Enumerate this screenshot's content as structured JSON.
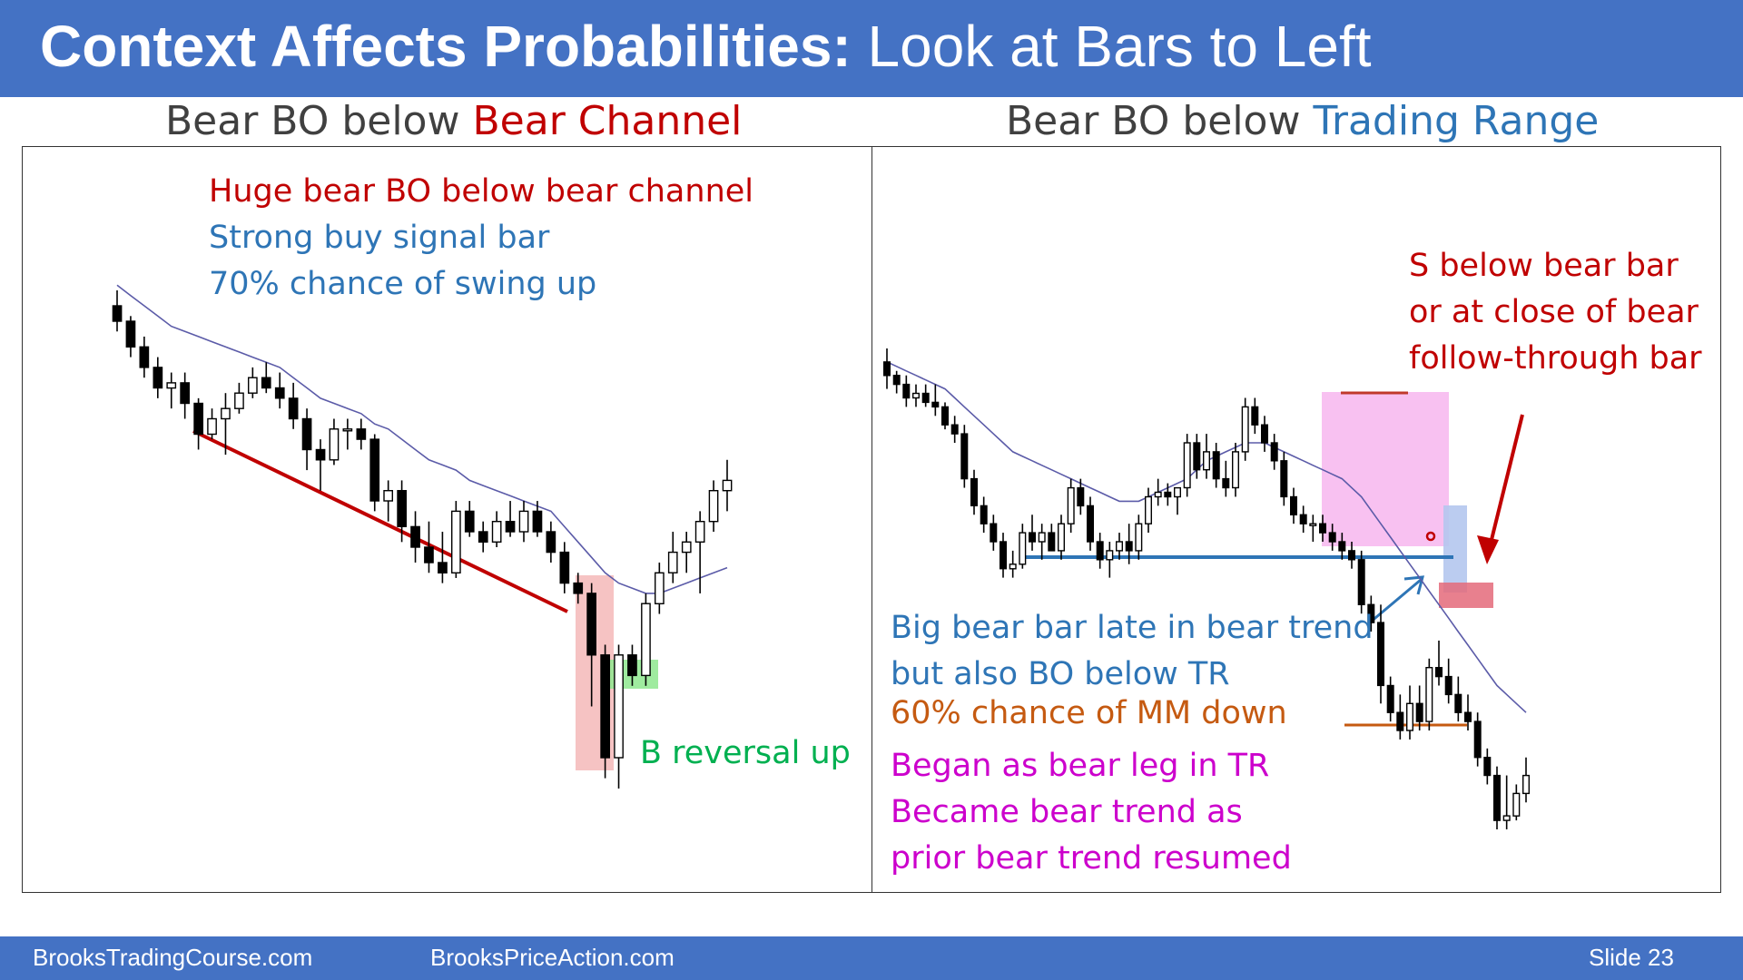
{
  "slide": {
    "title_bold": "Context Affects Probabilities:",
    "title_rest": "Look at Bars to Left"
  },
  "left": {
    "heading_prefix": "Bear BO below",
    "heading_emphasis": "Bear Channel",
    "notes": [
      "Huge bear BO below bear channel",
      "Strong buy signal bar",
      "70% chance of swing up"
    ],
    "reversal_label": "B reversal up"
  },
  "right": {
    "heading_prefix": "Bear BO below",
    "heading_emphasis": "Trading Range",
    "sell_notes": [
      "S below bear bar",
      "or at close of bear",
      "follow-through bar"
    ],
    "bigbar_notes": [
      "Big bear bar late in bear trend",
      "but also BO below TR"
    ],
    "mm_note": "60% chance of MM down",
    "leg_notes": [
      "Began as bear leg in TR",
      "Became bear trend as",
      "prior bear trend resumed"
    ]
  },
  "footer": {
    "site1": "BrooksTradingCourse.com",
    "site2": "BrooksPriceAction.com",
    "slide_label": "Slide  23"
  },
  "colors": {
    "title_bar": "#4472c4",
    "red_text": "#c00000",
    "blue_text": "#2e75b6",
    "green_text": "#00b050",
    "orange_text": "#c55a11",
    "magenta_text": "#cc00cc"
  },
  "chart_data": [
    {
      "type": "candlestick",
      "name": "left-chart",
      "bars_ohlc": [
        [
          100,
          103,
          95,
          97
        ],
        [
          97,
          98,
          90,
          92
        ],
        [
          92,
          94,
          86,
          88
        ],
        [
          88,
          90,
          82,
          84
        ],
        [
          84,
          87,
          80,
          85
        ],
        [
          85,
          87,
          78,
          81
        ],
        [
          81,
          82,
          72,
          75
        ],
        [
          75,
          80,
          74,
          78
        ],
        [
          78,
          83,
          71,
          80
        ],
        [
          80,
          85,
          79,
          83
        ],
        [
          83,
          88,
          82,
          86
        ],
        [
          86,
          89,
          83,
          84
        ],
        [
          84,
          87,
          80,
          82
        ],
        [
          82,
          85,
          76,
          78
        ],
        [
          78,
          80,
          68,
          72
        ],
        [
          72,
          74,
          64,
          70
        ],
        [
          70,
          78,
          69,
          76
        ],
        [
          76,
          78,
          72,
          76
        ],
        [
          76,
          78,
          72,
          74
        ],
        [
          74,
          75,
          60,
          62
        ],
        [
          62,
          66,
          58,
          64
        ],
        [
          64,
          66,
          54,
          57
        ],
        [
          57,
          60,
          50,
          53
        ],
        [
          53,
          58,
          48,
          50
        ],
        [
          50,
          56,
          46,
          48
        ],
        [
          48,
          62,
          47,
          60
        ],
        [
          60,
          62,
          55,
          56
        ],
        [
          56,
          58,
          52,
          54
        ],
        [
          54,
          60,
          53,
          58
        ],
        [
          58,
          62,
          55,
          56
        ],
        [
          56,
          62,
          54,
          60
        ],
        [
          60,
          62,
          55,
          56
        ],
        [
          56,
          58,
          50,
          52
        ],
        [
          52,
          54,
          44,
          46
        ],
        [
          46,
          48,
          42,
          44
        ],
        [
          44,
          46,
          22,
          32
        ],
        [
          32,
          34,
          8,
          12
        ],
        [
          12,
          34,
          6,
          32
        ],
        [
          32,
          34,
          26,
          28
        ],
        [
          28,
          44,
          26,
          42
        ],
        [
          42,
          50,
          40,
          48
        ],
        [
          48,
          56,
          46,
          52
        ],
        [
          52,
          56,
          48,
          54
        ],
        [
          54,
          60,
          44,
          58
        ],
        [
          58,
          66,
          56,
          64
        ],
        [
          64,
          70,
          60,
          66
        ]
      ],
      "ema": [
        104,
        102,
        100,
        98,
        96,
        95,
        94,
        93,
        92,
        91,
        90,
        89,
        88,
        86,
        84,
        82,
        81,
        80,
        79,
        77,
        76,
        74,
        72,
        70,
        69,
        68,
        66,
        65,
        64,
        63,
        62,
        61,
        60,
        57,
        54,
        51,
        48,
        46,
        45,
        44,
        44,
        45,
        46,
        47,
        48,
        49
      ]
    },
    {
      "type": "candlestick",
      "name": "right-chart",
      "bars_ohlc": [
        [
          100,
          103,
          94,
          97
        ],
        [
          97,
          98,
          93,
          95
        ],
        [
          95,
          97,
          90,
          92
        ],
        [
          92,
          95,
          90,
          93
        ],
        [
          93,
          95,
          90,
          91
        ],
        [
          91,
          95,
          88,
          90
        ],
        [
          90,
          91,
          85,
          86
        ],
        [
          86,
          88,
          82,
          84
        ],
        [
          84,
          86,
          72,
          74
        ],
        [
          74,
          76,
          66,
          68
        ],
        [
          68,
          70,
          62,
          64
        ],
        [
          64,
          66,
          58,
          60
        ],
        [
          60,
          62,
          52,
          54
        ],
        [
          54,
          58,
          52,
          55
        ],
        [
          55,
          64,
          54,
          62
        ],
        [
          62,
          66,
          58,
          60
        ],
        [
          60,
          64,
          56,
          62
        ],
        [
          62,
          64,
          58,
          58
        ],
        [
          58,
          66,
          56,
          64
        ],
        [
          64,
          74,
          62,
          72
        ],
        [
          72,
          74,
          66,
          68
        ],
        [
          68,
          70,
          58,
          60
        ],
        [
          60,
          62,
          54,
          56
        ],
        [
          56,
          60,
          52,
          58
        ],
        [
          58,
          62,
          56,
          60
        ],
        [
          60,
          64,
          55,
          58
        ],
        [
          58,
          66,
          56,
          64
        ],
        [
          64,
          72,
          62,
          70
        ],
        [
          70,
          74,
          68,
          71
        ],
        [
          71,
          73,
          68,
          70
        ],
        [
          70,
          72,
          66,
          72
        ],
        [
          72,
          84,
          70,
          82
        ],
        [
          82,
          84,
          74,
          76
        ],
        [
          76,
          84,
          74,
          80
        ],
        [
          80,
          82,
          72,
          74
        ],
        [
          74,
          78,
          70,
          72
        ],
        [
          72,
          82,
          70,
          80
        ],
        [
          80,
          92,
          78,
          90
        ],
        [
          90,
          92,
          84,
          86
        ],
        [
          86,
          88,
          80,
          82
        ],
        [
          82,
          84,
          76,
          78
        ],
        [
          78,
          80,
          68,
          70
        ],
        [
          70,
          72,
          64,
          66
        ],
        [
          66,
          68,
          62,
          64
        ],
        [
          64,
          66,
          60,
          64
        ],
        [
          64,
          66,
          60,
          62
        ],
        [
          62,
          64,
          58,
          60
        ],
        [
          60,
          62,
          56,
          58
        ],
        [
          58,
          60,
          54,
          56
        ],
        [
          56,
          58,
          44,
          46
        ],
        [
          46,
          48,
          40,
          42
        ],
        [
          42,
          46,
          24,
          28
        ],
        [
          28,
          30,
          20,
          22
        ],
        [
          22,
          26,
          16,
          18
        ],
        [
          18,
          28,
          16,
          24
        ],
        [
          24,
          28,
          18,
          20
        ],
        [
          20,
          34,
          18,
          32
        ],
        [
          32,
          38,
          28,
          30
        ],
        [
          30,
          34,
          24,
          26
        ],
        [
          26,
          30,
          20,
          22
        ],
        [
          22,
          26,
          18,
          20
        ],
        [
          20,
          22,
          10,
          12
        ],
        [
          12,
          14,
          6,
          8
        ],
        [
          8,
          10,
          -4,
          -2
        ],
        [
          -2,
          8,
          -4,
          -1
        ],
        [
          -1,
          6,
          -2,
          4
        ],
        [
          4,
          12,
          2,
          8
        ]
      ],
      "ema": [
        100,
        99,
        98,
        97,
        96,
        95,
        94,
        92,
        90,
        88,
        86,
        84,
        82,
        80,
        79,
        78,
        77,
        76,
        75,
        74,
        73,
        72,
        71,
        70,
        69,
        69,
        69,
        70,
        71,
        72,
        73,
        74,
        76,
        78,
        79,
        80,
        81,
        82,
        82,
        82,
        81,
        80,
        79,
        78,
        77,
        76,
        75,
        74,
        72,
        70,
        67,
        64,
        61,
        58,
        55,
        52,
        49,
        46,
        43,
        40,
        37,
        34,
        31,
        28,
        26,
        24,
        22
      ]
    }
  ]
}
